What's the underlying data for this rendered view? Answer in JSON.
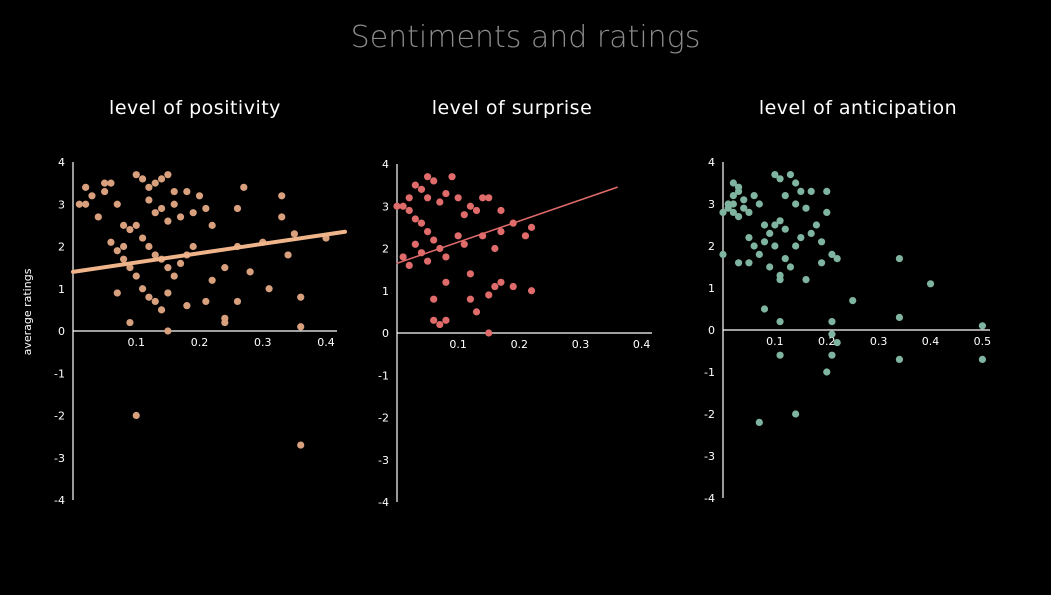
{
  "title": "Sentiments and ratings",
  "ylabel": "average ratings",
  "chart_data": [
    {
      "type": "scatter",
      "title": "level of positivity",
      "color": "#d9a07e",
      "trend_color": "#f0b48a",
      "xticks": [
        "0.1",
        "0.2",
        "0.3",
        "0.4"
      ],
      "yticks": [
        "4",
        "3",
        "2",
        "1",
        "0",
        "-1",
        "-2",
        "-3",
        "-4"
      ],
      "xlim": [
        0,
        0.43
      ],
      "ylim": [
        -4,
        4
      ],
      "trend": {
        "x": [
          0,
          0.43
        ],
        "y": [
          1.4,
          2.35
        ]
      },
      "points": [
        [
          0.01,
          3.0
        ],
        [
          0.02,
          3.0
        ],
        [
          0.03,
          3.2
        ],
        [
          0.05,
          3.3
        ],
        [
          0.06,
          3.5
        ],
        [
          0.07,
          3.0
        ],
        [
          0.04,
          2.7
        ],
        [
          0.08,
          2.5
        ],
        [
          0.09,
          2.4
        ],
        [
          0.06,
          2.1
        ],
        [
          0.07,
          1.9
        ],
        [
          0.08,
          2.0
        ],
        [
          0.1,
          3.7
        ],
        [
          0.11,
          3.6
        ],
        [
          0.12,
          3.4
        ],
        [
          0.13,
          3.5
        ],
        [
          0.14,
          3.6
        ],
        [
          0.15,
          3.7
        ],
        [
          0.16,
          3.3
        ],
        [
          0.12,
          3.1
        ],
        [
          0.13,
          2.8
        ],
        [
          0.14,
          2.9
        ],
        [
          0.15,
          2.6
        ],
        [
          0.16,
          3.0
        ],
        [
          0.17,
          2.7
        ],
        [
          0.18,
          3.3
        ],
        [
          0.2,
          3.2
        ],
        [
          0.19,
          2.8
        ],
        [
          0.21,
          2.9
        ],
        [
          0.22,
          2.5
        ],
        [
          0.1,
          2.5
        ],
        [
          0.11,
          2.2
        ],
        [
          0.12,
          2.0
        ],
        [
          0.13,
          1.8
        ],
        [
          0.14,
          1.7
        ],
        [
          0.15,
          1.5
        ],
        [
          0.16,
          1.3
        ],
        [
          0.17,
          1.6
        ],
        [
          0.18,
          1.8
        ],
        [
          0.19,
          2.0
        ],
        [
          0.08,
          1.7
        ],
        [
          0.09,
          1.5
        ],
        [
          0.1,
          1.3
        ],
        [
          0.11,
          1.0
        ],
        [
          0.12,
          0.8
        ],
        [
          0.13,
          0.7
        ],
        [
          0.14,
          0.5
        ],
        [
          0.15,
          0.9
        ],
        [
          0.09,
          0.2
        ],
        [
          0.15,
          0.0
        ],
        [
          0.21,
          0.7
        ],
        [
          0.24,
          0.3
        ],
        [
          0.24,
          0.2
        ],
        [
          0.26,
          0.7
        ],
        [
          0.22,
          1.2
        ],
        [
          0.24,
          1.5
        ],
        [
          0.26,
          2.0
        ],
        [
          0.27,
          3.4
        ],
        [
          0.26,
          2.9
        ],
        [
          0.3,
          2.1
        ],
        [
          0.31,
          1.0
        ],
        [
          0.33,
          3.2
        ],
        [
          0.33,
          2.7
        ],
        [
          0.34,
          1.8
        ],
        [
          0.35,
          2.3
        ],
        [
          0.36,
          0.8
        ],
        [
          0.36,
          0.1
        ],
        [
          0.4,
          2.2
        ],
        [
          0.1,
          -2.0
        ],
        [
          0.36,
          -2.7
        ],
        [
          0.07,
          0.9
        ],
        [
          0.05,
          3.5
        ],
        [
          0.02,
          3.4
        ],
        [
          0.28,
          1.4
        ],
        [
          0.18,
          0.6
        ]
      ]
    },
    {
      "type": "scatter",
      "title": "level of surprise",
      "color": "#e06b6b",
      "trend_color": "#e06b6b",
      "xticks": [
        "0.1",
        "0.2",
        "0.3",
        "0.4"
      ],
      "yticks": [
        "4",
        "3",
        "2",
        "1",
        "0",
        "-1",
        "-2",
        "-3",
        "-4"
      ],
      "xlim": [
        0,
        0.43
      ],
      "ylim": [
        -4,
        4
      ],
      "trend": {
        "x": [
          0,
          0.36
        ],
        "y": [
          1.65,
          3.45
        ]
      },
      "points": [
        [
          0.0,
          3.0
        ],
        [
          0.01,
          3.0
        ],
        [
          0.02,
          3.2
        ],
        [
          0.02,
          2.9
        ],
        [
          0.03,
          3.5
        ],
        [
          0.04,
          3.4
        ],
        [
          0.05,
          3.7
        ],
        [
          0.06,
          3.6
        ],
        [
          0.03,
          2.7
        ],
        [
          0.04,
          2.6
        ],
        [
          0.05,
          2.4
        ],
        [
          0.06,
          2.2
        ],
        [
          0.07,
          3.1
        ],
        [
          0.08,
          3.3
        ],
        [
          0.09,
          3.7
        ],
        [
          0.1,
          3.2
        ],
        [
          0.11,
          2.8
        ],
        [
          0.12,
          3.0
        ],
        [
          0.13,
          2.9
        ],
        [
          0.14,
          3.2
        ],
        [
          0.15,
          3.2
        ],
        [
          0.17,
          2.9
        ],
        [
          0.03,
          2.1
        ],
        [
          0.04,
          1.9
        ],
        [
          0.05,
          1.7
        ],
        [
          0.07,
          2.0
        ],
        [
          0.08,
          1.8
        ],
        [
          0.1,
          2.3
        ],
        [
          0.11,
          2.1
        ],
        [
          0.14,
          2.3
        ],
        [
          0.16,
          2.0
        ],
        [
          0.17,
          2.4
        ],
        [
          0.19,
          2.6
        ],
        [
          0.21,
          2.3
        ],
        [
          0.22,
          2.5
        ],
        [
          0.01,
          1.8
        ],
        [
          0.02,
          1.6
        ],
        [
          0.08,
          1.2
        ],
        [
          0.12,
          1.4
        ],
        [
          0.15,
          0.9
        ],
        [
          0.06,
          0.8
        ],
        [
          0.08,
          0.3
        ],
        [
          0.06,
          0.3
        ],
        [
          0.07,
          0.2
        ],
        [
          0.12,
          0.8
        ],
        [
          0.13,
          0.5
        ],
        [
          0.15,
          0.0
        ],
        [
          0.16,
          1.1
        ],
        [
          0.17,
          1.2
        ],
        [
          0.19,
          1.1
        ],
        [
          0.22,
          1.0
        ],
        [
          0.05,
          3.2
        ]
      ]
    },
    {
      "type": "scatter",
      "title": "level of anticipation",
      "color": "#7fb5a0",
      "trend_color": "#7fb5a0",
      "xticks": [
        "0.1",
        "0.2",
        "0.3",
        "0.4",
        "0.5"
      ],
      "yticks": [
        "4",
        "3",
        "2",
        "1",
        "0",
        "-1",
        "-2",
        "-3",
        "-4"
      ],
      "xlim": [
        0,
        0.53
      ],
      "ylim": [
        -4,
        4
      ],
      "trend": null,
      "points": [
        [
          0.0,
          2.8
        ],
        [
          0.01,
          2.9
        ],
        [
          0.02,
          3.0
        ],
        [
          0.02,
          3.2
        ],
        [
          0.03,
          3.4
        ],
        [
          0.03,
          2.7
        ],
        [
          0.04,
          2.9
        ],
        [
          0.04,
          3.1
        ],
        [
          0.02,
          2.8
        ],
        [
          0.01,
          3.0
        ],
        [
          0.02,
          3.5
        ],
        [
          0.03,
          3.3
        ],
        [
          0.05,
          2.8
        ],
        [
          0.06,
          3.2
        ],
        [
          0.07,
          3.0
        ],
        [
          0.08,
          2.5
        ],
        [
          0.09,
          2.3
        ],
        [
          0.1,
          2.5
        ],
        [
          0.11,
          2.6
        ],
        [
          0.12,
          2.4
        ],
        [
          0.1,
          3.7
        ],
        [
          0.11,
          3.6
        ],
        [
          0.13,
          3.7
        ],
        [
          0.14,
          3.5
        ],
        [
          0.15,
          3.3
        ],
        [
          0.17,
          3.3
        ],
        [
          0.12,
          3.2
        ],
        [
          0.14,
          3.0
        ],
        [
          0.16,
          2.9
        ],
        [
          0.2,
          3.3
        ],
        [
          0.2,
          2.8
        ],
        [
          0.05,
          2.2
        ],
        [
          0.06,
          2.0
        ],
        [
          0.07,
          1.8
        ],
        [
          0.08,
          2.1
        ],
        [
          0.1,
          2.0
        ],
        [
          0.12,
          1.7
        ],
        [
          0.14,
          2.0
        ],
        [
          0.15,
          2.2
        ],
        [
          0.17,
          2.3
        ],
        [
          0.18,
          2.5
        ],
        [
          0.19,
          2.1
        ],
        [
          0.0,
          1.8
        ],
        [
          0.03,
          1.6
        ],
        [
          0.05,
          1.6
        ],
        [
          0.09,
          1.5
        ],
        [
          0.11,
          1.3
        ],
        [
          0.13,
          1.5
        ],
        [
          0.16,
          1.2
        ],
        [
          0.19,
          1.6
        ],
        [
          0.21,
          1.8
        ],
        [
          0.22,
          1.7
        ],
        [
          0.11,
          1.2
        ],
        [
          0.25,
          0.7
        ],
        [
          0.08,
          0.5
        ],
        [
          0.11,
          0.2
        ],
        [
          0.21,
          0.2
        ],
        [
          0.22,
          -0.3
        ],
        [
          0.21,
          -0.1
        ],
        [
          0.34,
          1.7
        ],
        [
          0.34,
          0.3
        ],
        [
          0.4,
          1.1
        ],
        [
          0.5,
          0.1
        ],
        [
          0.11,
          -0.6
        ],
        [
          0.21,
          -0.6
        ],
        [
          0.2,
          -1.0
        ],
        [
          0.34,
          -0.7
        ],
        [
          0.5,
          -0.7
        ],
        [
          0.07,
          -2.2
        ],
        [
          0.14,
          -2.0
        ]
      ]
    }
  ]
}
